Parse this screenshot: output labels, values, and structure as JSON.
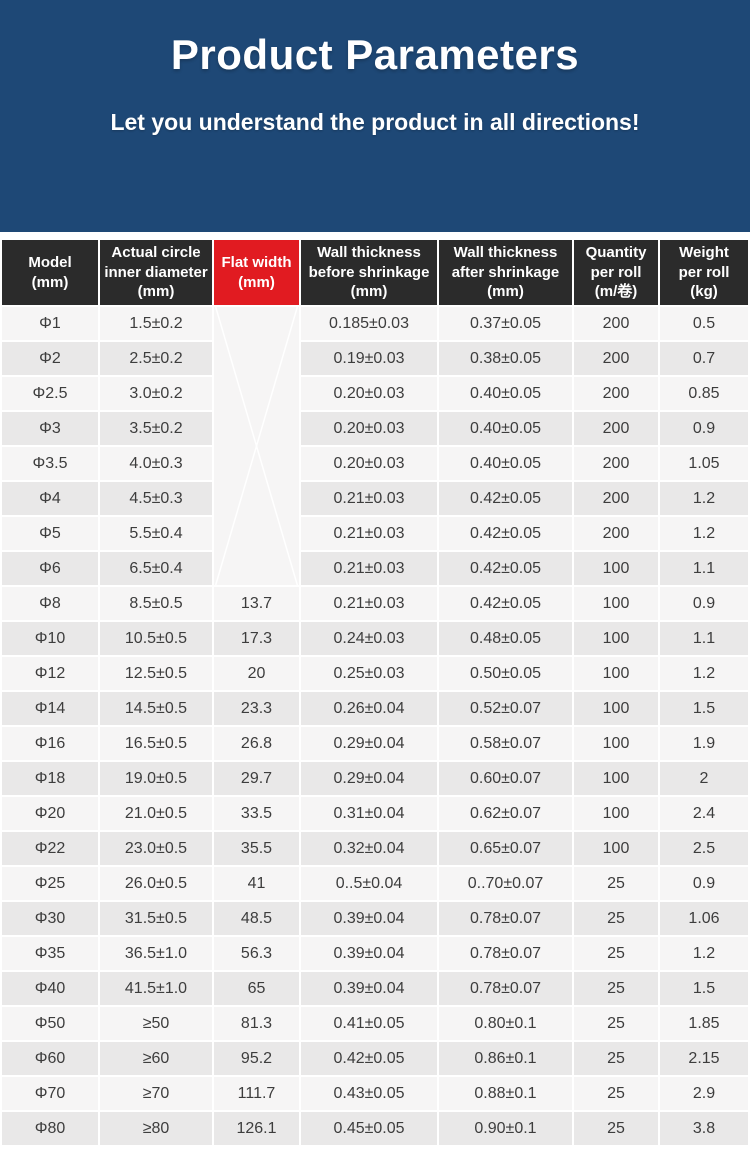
{
  "hero": {
    "title": "Product Parameters",
    "subtitle": "Let you understand the product in all directions!"
  },
  "colors": {
    "hero_background": "#1e4876",
    "header_background": "#2b2b2b",
    "flat_width_header_red": "#e11b21",
    "row_light": "#f6f5f5",
    "row_dark": "#e9e8e8",
    "flat_cell_pink_dark": "#f9959d",
    "flat_cell_pink_light": "#fcd9de",
    "text": "#3d3d3d"
  },
  "table": {
    "columns": [
      {
        "id": "model",
        "title": "Model\n(mm)"
      },
      {
        "id": "inner_diameter",
        "title": "Actual circle\ninner diameter\n(mm)"
      },
      {
        "id": "flat_width",
        "title": "Flat width\n(mm)"
      },
      {
        "id": "wall_before",
        "title": "Wall thickness\nbefore shrinkage\n(mm)"
      },
      {
        "id": "wall_after",
        "title": "Wall thickness\nafter shrinkage\n(mm)"
      },
      {
        "id": "qty_per_roll",
        "title": "Quantity\nper roll\n(m/卷)"
      },
      {
        "id": "weight",
        "title": "Weight\nper roll\n(kg)"
      }
    ],
    "flat_width_merged": {
      "row_span": 8,
      "marker": "crossed-out-x"
    },
    "rows": [
      {
        "model": "Φ1",
        "inner_diameter": "1.5±0.2",
        "flat_width": null,
        "wall_before": "0.185±0.03",
        "wall_after": "0.37±0.05",
        "qty_per_roll": "200",
        "weight": "0.5"
      },
      {
        "model": "Φ2",
        "inner_diameter": "2.5±0.2",
        "flat_width": null,
        "wall_before": "0.19±0.03",
        "wall_after": "0.38±0.05",
        "qty_per_roll": "200",
        "weight": "0.7"
      },
      {
        "model": "Φ2.5",
        "inner_diameter": "3.0±0.2",
        "flat_width": null,
        "wall_before": "0.20±0.03",
        "wall_after": "0.40±0.05",
        "qty_per_roll": "200",
        "weight": "0.85"
      },
      {
        "model": "Φ3",
        "inner_diameter": "3.5±0.2",
        "flat_width": null,
        "wall_before": "0.20±0.03",
        "wall_after": "0.40±0.05",
        "qty_per_roll": "200",
        "weight": "0.9"
      },
      {
        "model": "Φ3.5",
        "inner_diameter": "4.0±0.3",
        "flat_width": null,
        "wall_before": "0.20±0.03",
        "wall_after": "0.40±0.05",
        "qty_per_roll": "200",
        "weight": "1.05"
      },
      {
        "model": "Φ4",
        "inner_diameter": "4.5±0.3",
        "flat_width": null,
        "wall_before": "0.21±0.03",
        "wall_after": "0.42±0.05",
        "qty_per_roll": "200",
        "weight": "1.2"
      },
      {
        "model": "Φ5",
        "inner_diameter": "5.5±0.4",
        "flat_width": null,
        "wall_before": "0.21±0.03",
        "wall_after": "0.42±0.05",
        "qty_per_roll": "200",
        "weight": "1.2"
      },
      {
        "model": "Φ6",
        "inner_diameter": "6.5±0.4",
        "flat_width": null,
        "wall_before": "0.21±0.03",
        "wall_after": "0.42±0.05",
        "qty_per_roll": "100",
        "weight": "1.1"
      },
      {
        "model": "Φ8",
        "inner_diameter": "8.5±0.5",
        "flat_width": "13.7",
        "wall_before": "0.21±0.03",
        "wall_after": "0.42±0.05",
        "qty_per_roll": "100",
        "weight": "0.9"
      },
      {
        "model": "Φ10",
        "inner_diameter": "10.5±0.5",
        "flat_width": "17.3",
        "wall_before": "0.24±0.03",
        "wall_after": "0.48±0.05",
        "qty_per_roll": "100",
        "weight": "1.1"
      },
      {
        "model": "Φ12",
        "inner_diameter": "12.5±0.5",
        "flat_width": "20",
        "wall_before": "0.25±0.03",
        "wall_after": "0.50±0.05",
        "qty_per_roll": "100",
        "weight": "1.2"
      },
      {
        "model": "Φ14",
        "inner_diameter": "14.5±0.5",
        "flat_width": "23.3",
        "wall_before": "0.26±0.04",
        "wall_after": "0.52±0.07",
        "qty_per_roll": "100",
        "weight": "1.5"
      },
      {
        "model": "Φ16",
        "inner_diameter": "16.5±0.5",
        "flat_width": "26.8",
        "wall_before": "0.29±0.04",
        "wall_after": "0.58±0.07",
        "qty_per_roll": "100",
        "weight": "1.9"
      },
      {
        "model": "Φ18",
        "inner_diameter": "19.0±0.5",
        "flat_width": "29.7",
        "wall_before": "0.29±0.04",
        "wall_after": "0.60±0.07",
        "qty_per_roll": "100",
        "weight": "2"
      },
      {
        "model": "Φ20",
        "inner_diameter": "21.0±0.5",
        "flat_width": "33.5",
        "wall_before": "0.31±0.04",
        "wall_after": "0.62±0.07",
        "qty_per_roll": "100",
        "weight": "2.4"
      },
      {
        "model": "Φ22",
        "inner_diameter": "23.0±0.5",
        "flat_width": "35.5",
        "wall_before": "0.32±0.04",
        "wall_after": "0.65±0.07",
        "qty_per_roll": "100",
        "weight": "2.5"
      },
      {
        "model": "Φ25",
        "inner_diameter": "26.0±0.5",
        "flat_width": "41",
        "wall_before": "0..5±0.04",
        "wall_after": "0..70±0.07",
        "qty_per_roll": "25",
        "weight": "0.9"
      },
      {
        "model": "Φ30",
        "inner_diameter": "31.5±0.5",
        "flat_width": "48.5",
        "wall_before": "0.39±0.04",
        "wall_after": "0.78±0.07",
        "qty_per_roll": "25",
        "weight": "1.06"
      },
      {
        "model": "Φ35",
        "inner_diameter": "36.5±1.0",
        "flat_width": "56.3",
        "wall_before": "0.39±0.04",
        "wall_after": "0.78±0.07",
        "qty_per_roll": "25",
        "weight": "1.2"
      },
      {
        "model": "Φ40",
        "inner_diameter": "41.5±1.0",
        "flat_width": "65",
        "wall_before": "0.39±0.04",
        "wall_after": "0.78±0.07",
        "qty_per_roll": "25",
        "weight": "1.5"
      },
      {
        "model": "Φ50",
        "inner_diameter": "≥50",
        "flat_width": "81.3",
        "wall_before": "0.41±0.05",
        "wall_after": "0.80±0.1",
        "qty_per_roll": "25",
        "weight": "1.85"
      },
      {
        "model": "Φ60",
        "inner_diameter": "≥60",
        "flat_width": "95.2",
        "wall_before": "0.42±0.05",
        "wall_after": "0.86±0.1",
        "qty_per_roll": "25",
        "weight": "2.15"
      },
      {
        "model": "Φ70",
        "inner_diameter": "≥70",
        "flat_width": "111.7",
        "wall_before": "0.43±0.05",
        "wall_after": "0.88±0.1",
        "qty_per_roll": "25",
        "weight": "2.9"
      },
      {
        "model": "Φ80",
        "inner_diameter": "≥80",
        "flat_width": "126.1",
        "wall_before": "0.45±0.05",
        "wall_after": "0.90±0.1",
        "qty_per_roll": "25",
        "weight": "3.8"
      }
    ]
  }
}
